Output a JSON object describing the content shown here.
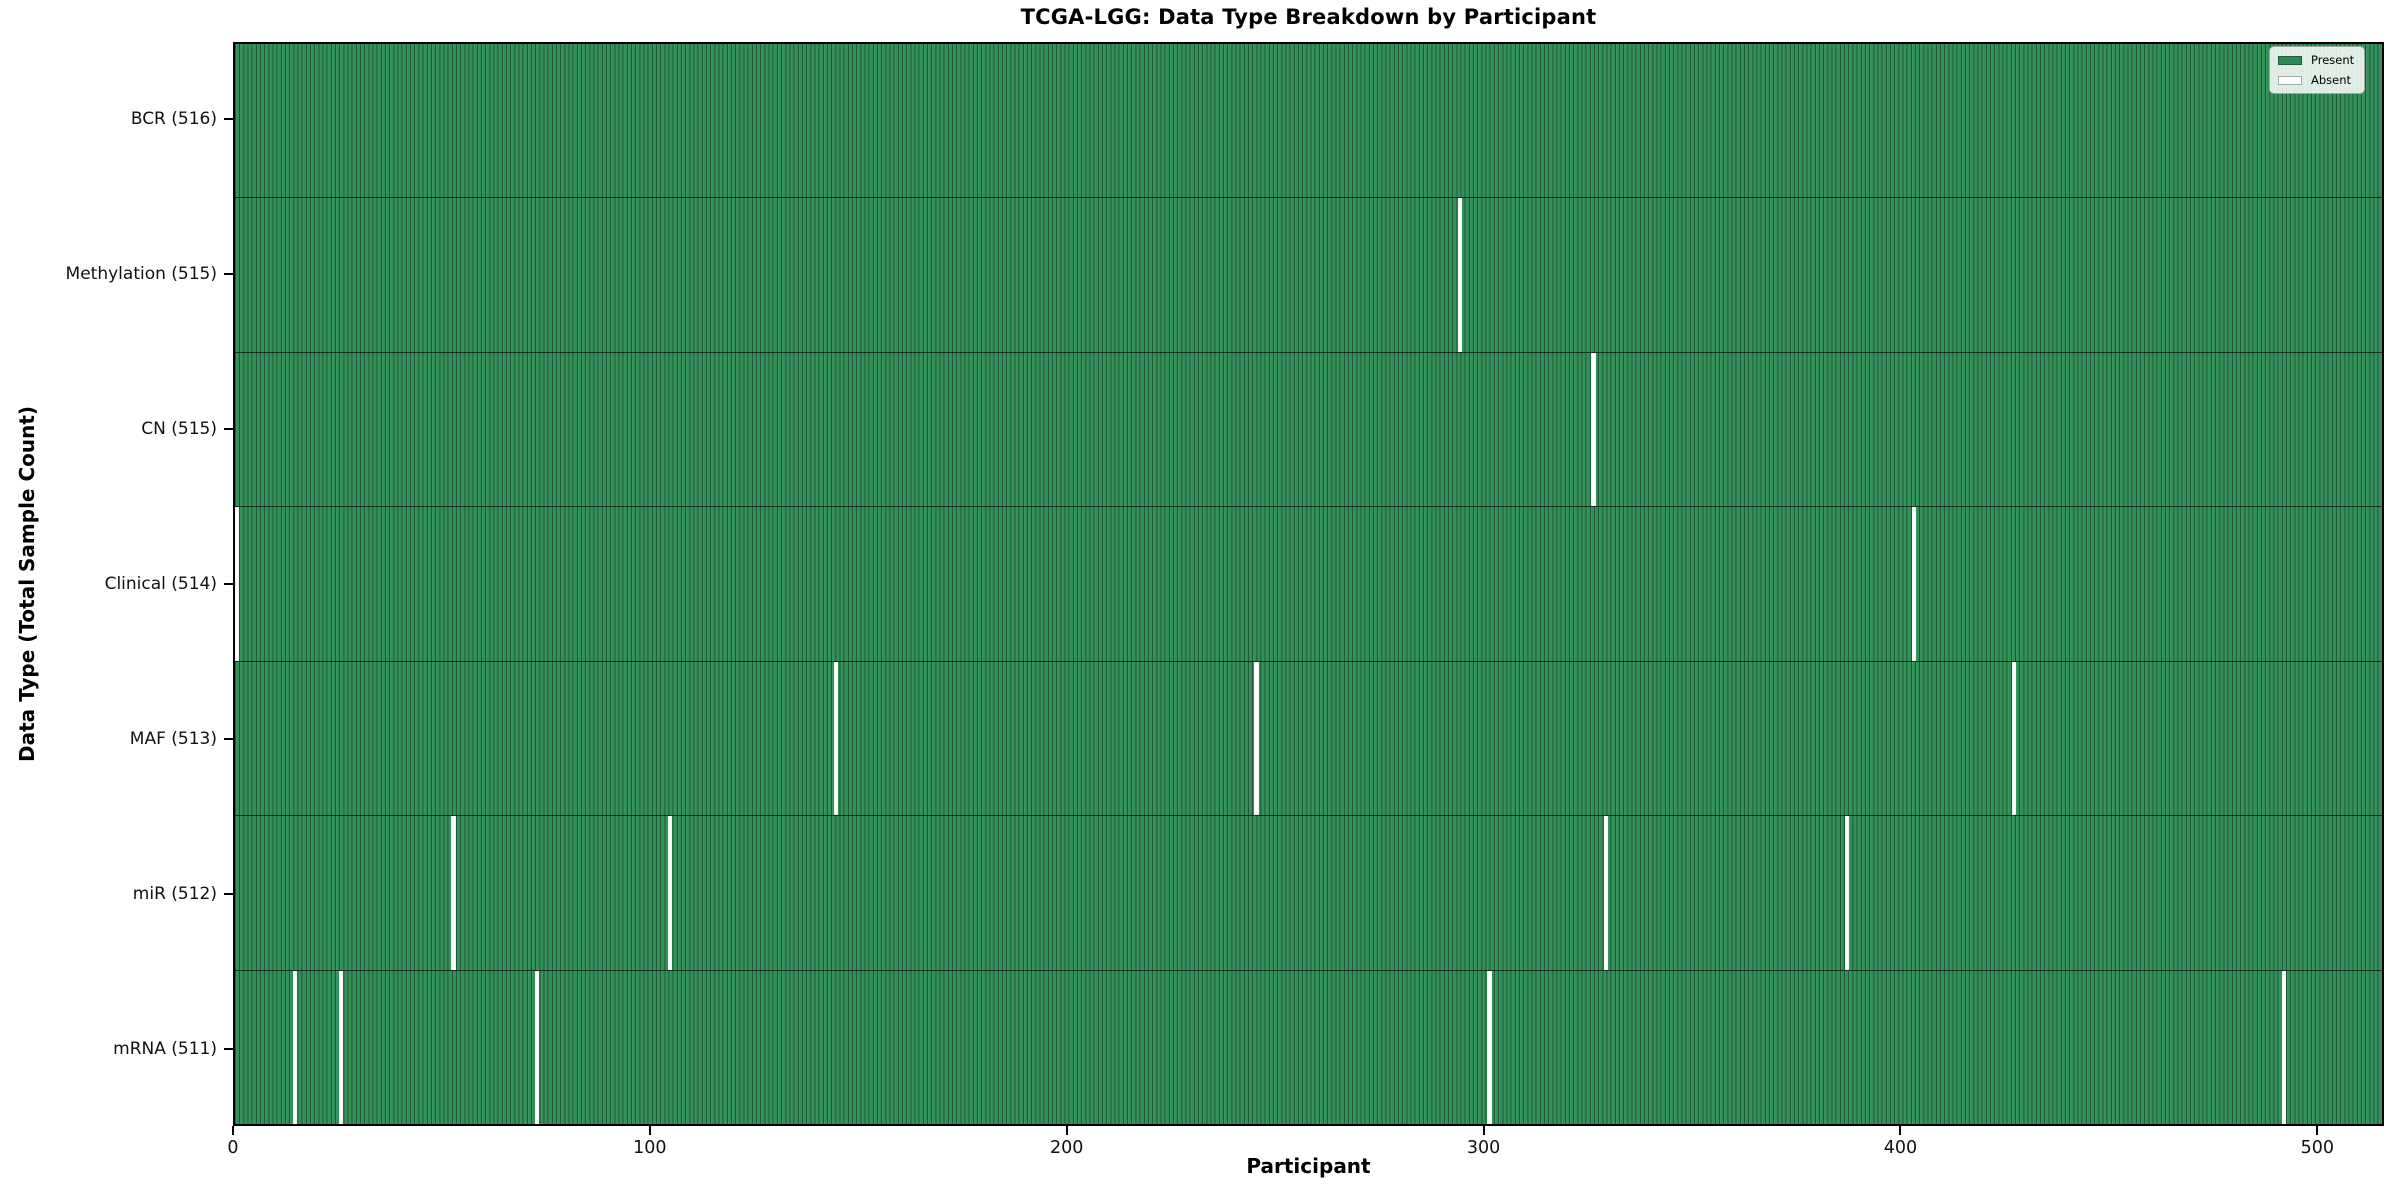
{
  "figure": {
    "title": "TCGA-LGG: Data Type Breakdown by Participant",
    "xlabel": "Participant",
    "ylabel": "Data Type (Total Sample Count)"
  },
  "legend": {
    "present_label": "Present",
    "absent_label": "Absent",
    "position": "upper right"
  },
  "colors": {
    "present": "#2e8b57",
    "absent": "#ffffff",
    "cell_edge": "rgba(0,0,0,0.40)",
    "spine": "#000000"
  },
  "chart_data": {
    "type": "heatmap",
    "title": "TCGA-LGG: Data Type Breakdown by Participant",
    "xlabel": "Participant",
    "ylabel": "Data Type (Total Sample Count)",
    "x_range": [
      0,
      516
    ],
    "x_ticks": [
      0,
      100,
      200,
      300,
      400,
      500
    ],
    "n_participants": 516,
    "grid": false,
    "legend_entries": [
      {
        "label": "Present",
        "color": "#2e8b57"
      },
      {
        "label": "Absent",
        "color": "#ffffff"
      }
    ],
    "rows": [
      {
        "label": "BCR (516)",
        "data_type": "BCR",
        "total_samples": 516,
        "absent_participants": []
      },
      {
        "label": "Methylation (515)",
        "data_type": "Methylation",
        "total_samples": 515,
        "absent_participants": [
          294
        ]
      },
      {
        "label": "CN (515)",
        "data_type": "CN",
        "total_samples": 515,
        "absent_participants": [
          326
        ]
      },
      {
        "label": "Clinical (514)",
        "data_type": "Clinical",
        "total_samples": 514,
        "absent_participants": [
          0,
          403
        ]
      },
      {
        "label": "MAF (513)",
        "data_type": "MAF",
        "total_samples": 513,
        "absent_participants": [
          144,
          245,
          427
        ]
      },
      {
        "label": "miR (512)",
        "data_type": "miR",
        "total_samples": 512,
        "absent_participants": [
          52,
          104,
          329,
          387
        ]
      },
      {
        "label": "mRNA (511)",
        "data_type": "mRNA",
        "total_samples": 511,
        "absent_participants": [
          14,
          25,
          72,
          301,
          492
        ]
      }
    ]
  }
}
